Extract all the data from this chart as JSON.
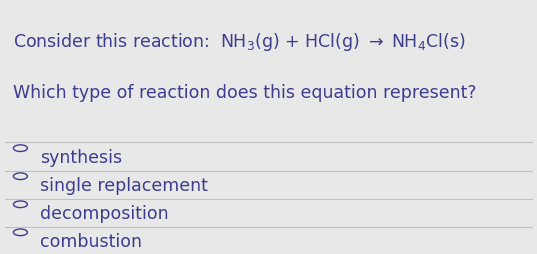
{
  "background_color": "#e8e8e8",
  "text_color": "#3d3d8f",
  "line1": "Consider this reaction:  NH$_3$(g) + HCl(g) $\\rightarrow$ NH$_4$Cl(s)",
  "line2": "Which type of reaction does this equation represent?",
  "options": [
    "synthesis",
    "single replacement",
    "decomposition",
    "combustion"
  ],
  "divider_color": "#c0c0c0",
  "font_size_title": 12.5,
  "font_size_options": 12.5,
  "circle_color": "#3d3d8f",
  "figwidth": 5.37,
  "figheight": 2.55,
  "dpi": 100
}
